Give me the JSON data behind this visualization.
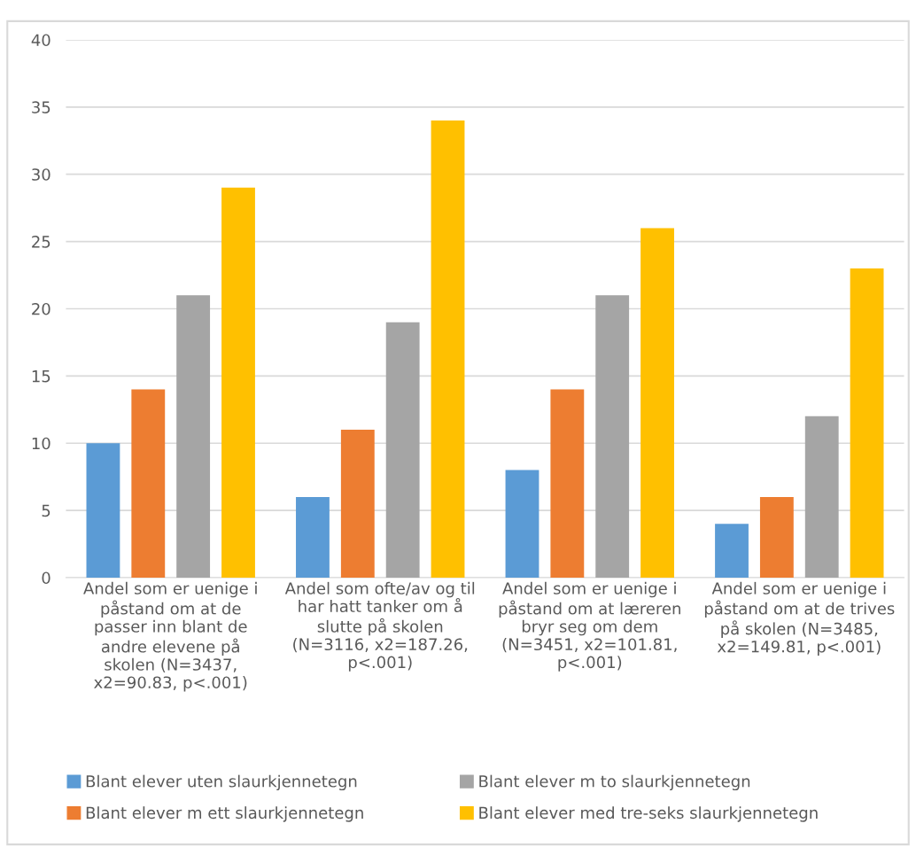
{
  "chart_data": {
    "type": "bar",
    "categories": [
      "Andel som er uenige i\npåstand om at de\npasser inn blant de\nandre elevene på\nskolen (N=3437,\nx2=90.83, p<.001)",
      "Andel som ofte/av og til\nhar hatt tanker om å\nslutte på skolen\n(N=3116, x2=187.26,\np<.001)",
      "Andel som er uenige i\npåstand om at læreren\nbryr seg om dem\n(N=3451, x2=101.81,\np<.001)",
      "Andel som er uenige i\npåstand om at de trives\npå skolen (N=3485,\nx2=149.81, p<.001)"
    ],
    "series": [
      {
        "name": "Blant elever uten slaurkjennetegn",
        "color": "#5b9bd5",
        "values": [
          10,
          6,
          8,
          4
        ]
      },
      {
        "name": "Blant elever m ett slaurkjennetegn",
        "color": "#ed7d31",
        "values": [
          14,
          11,
          14,
          6
        ]
      },
      {
        "name": "Blant elever m to slaurkjennetegn",
        "color": "#a5a5a5",
        "values": [
          21,
          19,
          21,
          12
        ]
      },
      {
        "name": "Blant elever med tre-seks slaurkjennetegn",
        "color": "#ffc000",
        "values": [
          29,
          34,
          26,
          23
        ]
      }
    ],
    "ylim": [
      0,
      40
    ],
    "yticks": [
      0,
      5,
      10,
      15,
      20,
      25,
      30,
      35,
      40
    ],
    "grid": "y",
    "legend": "bottom"
  }
}
